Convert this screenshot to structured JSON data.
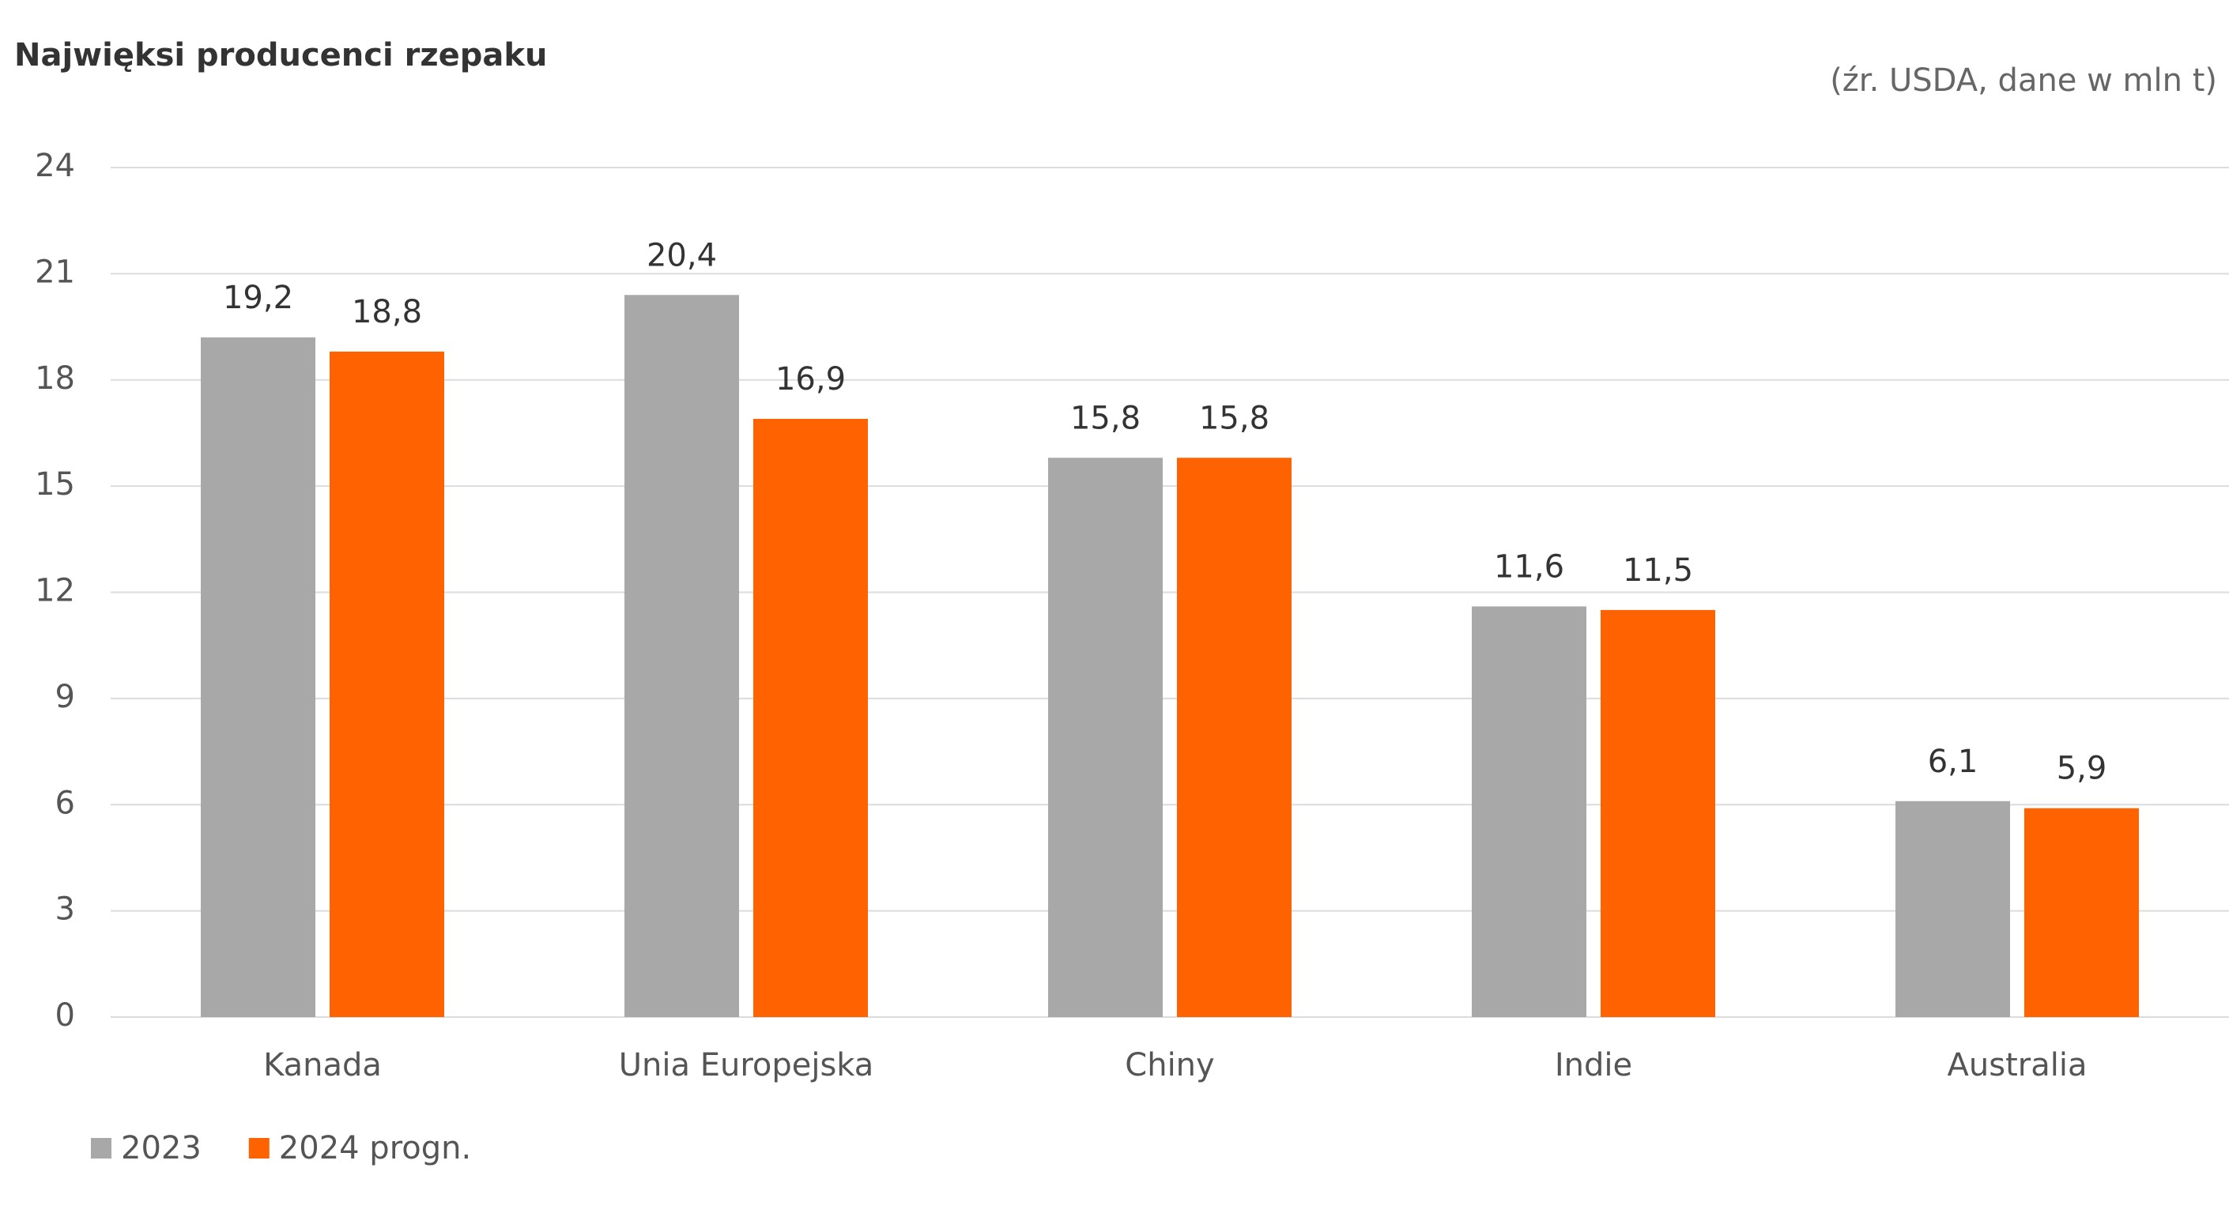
{
  "chart_data": {
    "type": "bar",
    "title": "Najwięksi producenci rzepaku",
    "subtitle": "(źr. USDA, dane w mln t)",
    "categories": [
      "Kanada",
      "Unia Europejska",
      "Chiny",
      "Indie",
      "Australia"
    ],
    "series": [
      {
        "name": "2023",
        "color": "#a8a8a8",
        "values": [
          19.2,
          20.4,
          15.8,
          11.6,
          6.1
        ],
        "value_labels": [
          "19,2",
          "20,4",
          "15,8",
          "11,6",
          "6,1"
        ]
      },
      {
        "name": "2024 progn.",
        "color": "#ff6200",
        "values": [
          18.8,
          16.9,
          15.8,
          11.5,
          5.9
        ],
        "value_labels": [
          "18,8",
          "16,9",
          "15,8",
          "11,5",
          "5,9"
        ]
      }
    ],
    "ylim": [
      0,
      24
    ],
    "yticks": [
      0,
      3,
      6,
      9,
      12,
      15,
      18,
      21,
      24
    ],
    "grid": true,
    "legend": "bottom-left"
  }
}
